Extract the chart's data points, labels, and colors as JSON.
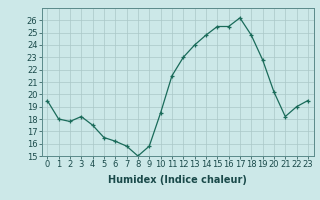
{
  "x": [
    0,
    1,
    2,
    3,
    4,
    5,
    6,
    7,
    8,
    9,
    10,
    11,
    12,
    13,
    14,
    15,
    16,
    17,
    18,
    19,
    20,
    21,
    22,
    23
  ],
  "y": [
    19.5,
    18.0,
    17.8,
    18.2,
    17.5,
    16.5,
    16.2,
    15.8,
    15.0,
    15.8,
    18.5,
    21.5,
    23.0,
    24.0,
    24.8,
    25.5,
    25.5,
    26.2,
    24.8,
    22.8,
    20.2,
    18.2,
    19.0,
    19.5
  ],
  "xlabel": "Humidex (Indice chaleur)",
  "ylim": [
    15,
    27
  ],
  "xlim": [
    -0.5,
    23.5
  ],
  "yticks": [
    15,
    16,
    17,
    18,
    19,
    20,
    21,
    22,
    23,
    24,
    25,
    26
  ],
  "xticks": [
    0,
    1,
    2,
    3,
    4,
    5,
    6,
    7,
    8,
    9,
    10,
    11,
    12,
    13,
    14,
    15,
    16,
    17,
    18,
    19,
    20,
    21,
    22,
    23
  ],
  "line_color": "#1a6b5a",
  "marker_color": "#1a6b5a",
  "bg_color": "#cce8e8",
  "grid_color": "#aac8c8",
  "xlabel_fontsize": 7,
  "tick_fontsize": 6
}
